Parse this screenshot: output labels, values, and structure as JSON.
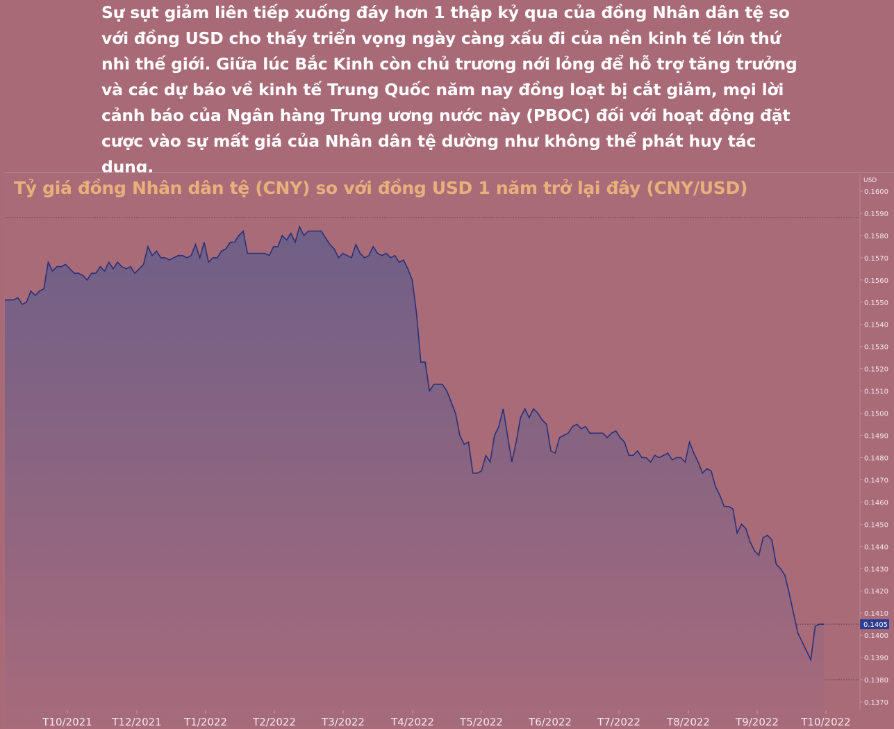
{
  "intro": {
    "text": "Sự sụt giảm liên tiếp xuống đáy hơn 1 thập kỷ qua của đồng Nhân dân tệ so với đồng USD cho thấy triển vọng ngày càng xấu đi của nền kinh tế lớn thứ nhì thế giới. Giữa lúc Bắc Kinh còn chủ trương nới lỏng để hỗ trợ tăng trưởng và các dự báo về kinh tế Trung Quốc năm nay đồng loạt bị cắt giảm, mọi lời cảnh báo của Ngân hàng Trung ương nước này (PBOC) đối với hoạt động đặt cược vào sự mất giá của Nhân dân tệ dường như không thể phát huy tác dụng."
  },
  "chart_data": {
    "type": "area",
    "title": "Tỷ giá đồng Nhân dân tệ (CNY) so với đồng USD 1 năm trở lại đây  (CNY/USD)",
    "y_unit_label": "USD",
    "ylim": [
      0.137,
      0.16
    ],
    "y_ticks": [
      "0.1600",
      "0.1590",
      "0.1580",
      "0.1570",
      "0.1560",
      "0.1550",
      "0.1540",
      "0.1530",
      "0.1520",
      "0.1510",
      "0.1500",
      "0.1490",
      "0.1480",
      "0.1470",
      "0.1460",
      "0.1450",
      "0.1440",
      "0.1430",
      "0.1420",
      "0.1410",
      "0.1400",
      "0.1390",
      "0.1380",
      "0.1370"
    ],
    "x_ticks": [
      "T10/2021",
      "T12/2021",
      "T1/2022",
      "T2/2022",
      "T3/2022",
      "T4/2022",
      "T5/2022",
      "T6/2022",
      "T7/2022",
      "T8/2022",
      "T9/2022",
      "T10/2022"
    ],
    "last_value_label": "0.1405",
    "last_value": 0.1405,
    "grid": false,
    "reference_lines": [
      0.1588,
      0.1405,
      0.138
    ],
    "colors": {
      "line": "#26307a",
      "fill_top": "#6e5f86",
      "fill_bottom": "#a46a7a",
      "title": "#e8b07a",
      "label_box": "#2f3d8f"
    },
    "series": [
      {
        "values": [
          0.1551,
          0.1551,
          0.1551,
          0.1552,
          0.1549,
          0.155,
          0.1555,
          0.1553,
          0.1555,
          0.1556,
          0.1568,
          0.1564,
          0.1566,
          0.1566,
          0.1567,
          0.1565,
          0.1563,
          0.1563,
          0.1562,
          0.156,
          0.1563,
          0.1563,
          0.1566,
          0.1564,
          0.1568,
          0.1565,
          0.1568,
          0.1566,
          0.1565,
          0.1566,
          0.1563,
          0.1565,
          0.1567,
          0.1575,
          0.1571,
          0.1573,
          0.157,
          0.157,
          0.1569,
          0.157,
          0.1571,
          0.1571,
          0.157,
          0.1571,
          0.1576,
          0.157,
          0.1577,
          0.1568,
          0.157,
          0.157,
          0.1573,
          0.1574,
          0.1577,
          0.1577,
          0.158,
          0.1582,
          0.1572,
          0.1572,
          0.1572,
          0.1572,
          0.1572,
          0.1571,
          0.1575,
          0.1575,
          0.158,
          0.1578,
          0.1581,
          0.1577,
          0.1584,
          0.158,
          0.1582,
          0.1582,
          0.1582,
          0.1582,
          0.1579,
          0.1576,
          0.1574,
          0.157,
          0.1572,
          0.1571,
          0.157,
          0.1576,
          0.1572,
          0.157,
          0.1571,
          0.1575,
          0.1572,
          0.1571,
          0.1572,
          0.157,
          0.1571,
          0.1568,
          0.1569,
          0.1565,
          0.156,
          0.1545,
          0.1523,
          0.1523,
          0.151,
          0.1513,
          0.1513,
          0.1513,
          0.151,
          0.1505,
          0.15,
          0.149,
          0.1486,
          0.1487,
          0.1473,
          0.1473,
          0.1474,
          0.1481,
          0.1478,
          0.149,
          0.1494,
          0.1502,
          0.149,
          0.1478,
          0.1487,
          0.1498,
          0.1502,
          0.1498,
          0.1502,
          0.15,
          0.1497,
          0.1495,
          0.1483,
          0.1482,
          0.1489,
          0.149,
          0.1491,
          0.1494,
          0.1495,
          0.1493,
          0.1494,
          0.1491,
          0.1491,
          0.1491,
          0.1491,
          0.1489,
          0.1491,
          0.1492,
          0.1489,
          0.1487,
          0.1481,
          0.1481,
          0.1483,
          0.148,
          0.148,
          0.1478,
          0.1481,
          0.148,
          0.1481,
          0.1482,
          0.1479,
          0.148,
          0.148,
          0.1478,
          0.1487,
          0.1482,
          0.1478,
          0.1473,
          0.1475,
          0.1474,
          0.1467,
          0.1463,
          0.1458,
          0.1458,
          0.1457,
          0.1446,
          0.145,
          0.1448,
          0.1442,
          0.1438,
          0.1436,
          0.1444,
          0.1445,
          0.1443,
          0.1432,
          0.143,
          0.1427,
          0.1419,
          0.141,
          0.1401,
          0.1397,
          0.1393,
          0.1389,
          0.1404,
          0.1405,
          0.1405
        ]
      }
    ]
  }
}
